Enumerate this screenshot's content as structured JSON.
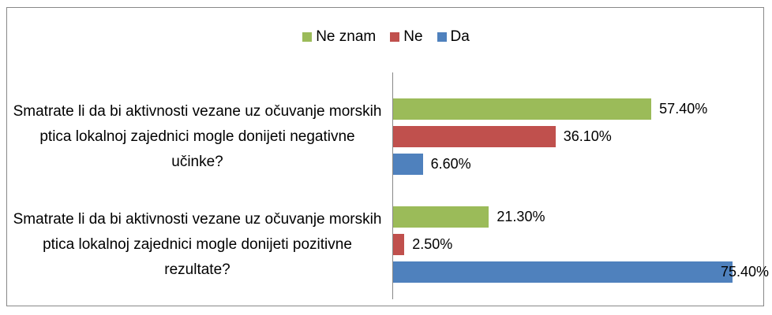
{
  "chart_data": {
    "type": "bar",
    "orientation": "horizontal",
    "categories": [
      "Smatrate li da bi aktivnosti vezane uz očuvanje morskih ptica lokalnoj zajednici mogle donijeti negativne učinke?",
      "Smatrate li da bi aktivnosti vezane uz očuvanje morskih ptica lokalnoj zajednici mogle donijeti pozitivne rezultate?"
    ],
    "series": [
      {
        "name": "Ne znam",
        "color": "#9bbb59",
        "values": [
          57.4,
          21.3
        ],
        "value_labels": [
          "57.40%",
          "21.30%"
        ]
      },
      {
        "name": "Ne",
        "color": "#c0504d",
        "values": [
          36.1,
          2.5
        ],
        "value_labels": [
          "36.10%",
          "2.50%"
        ]
      },
      {
        "name": "Da",
        "color": "#4f81bd",
        "values": [
          6.6,
          75.4
        ],
        "value_labels": [
          "6.60%",
          "75.40%"
        ]
      }
    ],
    "xlim": [
      0,
      80
    ],
    "legend": "top"
  }
}
